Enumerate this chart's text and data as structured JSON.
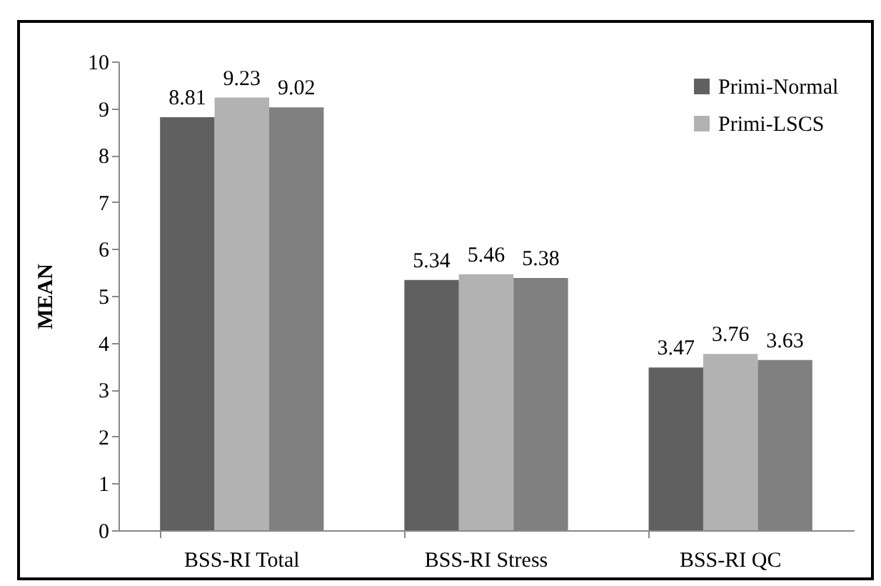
{
  "chart_data": {
    "type": "bar",
    "ylabel": "MEAN",
    "categories": [
      "BSS-RI Total",
      "BSS-RI Stress",
      "BSS-RI QC"
    ],
    "series": [
      {
        "name": "Primi-Normal",
        "color": "#606060",
        "values": [
          8.81,
          5.34,
          3.47
        ]
      },
      {
        "name": "Primi-LSCS",
        "color": "#b2b2b2",
        "values": [
          9.23,
          5.46,
          3.76
        ]
      },
      {
        "color": "#808080",
        "values": [
          9.02,
          5.38,
          3.63
        ]
      }
    ],
    "ylim": [
      0,
      10
    ],
    "yticks": [
      0,
      1,
      2,
      3,
      4,
      5,
      6,
      7,
      8,
      9,
      10
    ],
    "grid": false,
    "legend": "top right",
    "data_labels": true
  }
}
